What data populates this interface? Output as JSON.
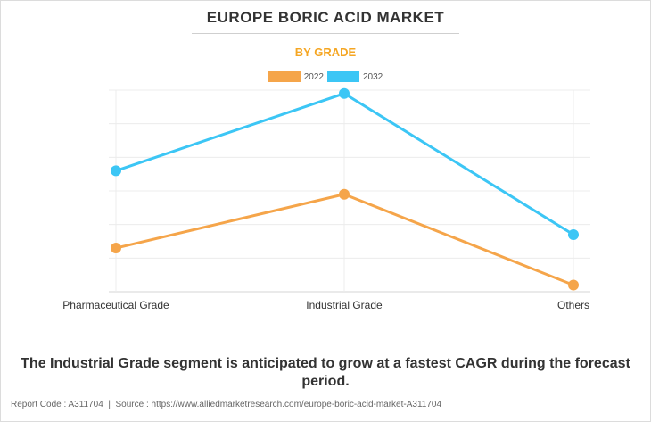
{
  "header": {
    "title": "EUROPE BORIC ACID MARKET",
    "subtitle": "BY GRADE"
  },
  "chart_data": {
    "type": "line",
    "title": "EUROPE BORIC ACID MARKET",
    "subtitle": "BY GRADE",
    "categories": [
      "Pharmaceutical Grade",
      "Industrial Grade",
      "Others"
    ],
    "series": [
      {
        "name": "2022",
        "color": "#f5a54a",
        "values": [
          13,
          29,
          2
        ]
      },
      {
        "name": "2032",
        "color": "#3cc6f5",
        "values": [
          36,
          59,
          17
        ]
      }
    ],
    "xlabel": "",
    "ylabel": "",
    "ylim": [
      0,
      60
    ],
    "grid": true,
    "legend": "top-center"
  },
  "caption": "The Industrial Grade segment is anticipated to grow at a fastest CAGR during the forecast period.",
  "footer": {
    "report_code": "Report Code : A311704",
    "source": "Source : https://www.alliedmarketresearch.com/europe-boric-acid-market-A311704"
  }
}
